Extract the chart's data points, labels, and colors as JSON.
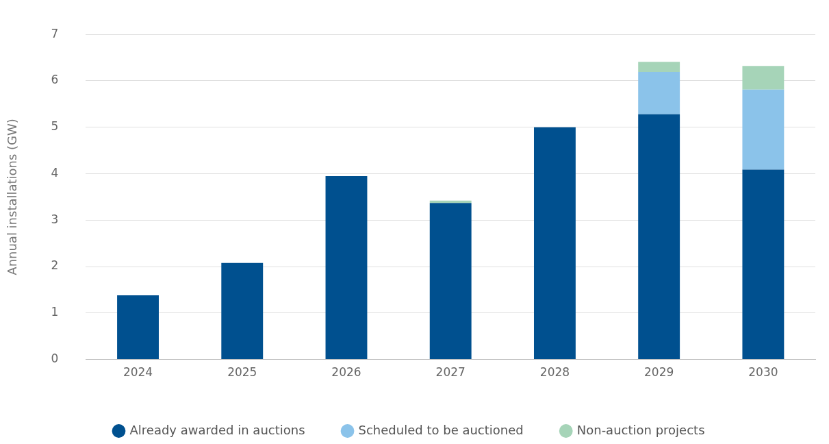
{
  "chart_data": {
    "type": "bar",
    "stacked": true,
    "ylabel": "Annual installations (GW)",
    "categories": [
      "2024",
      "2025",
      "2026",
      "2027",
      "2028",
      "2029",
      "2030"
    ],
    "series": [
      {
        "name": "Already awarded in auctions",
        "color": "#00508f",
        "values": [
          1.38,
          2.08,
          3.95,
          3.37,
          5.0,
          5.28,
          4.09
        ]
      },
      {
        "name": "Scheduled to be auctioned",
        "color": "#8bc3ea",
        "values": [
          null,
          null,
          null,
          null,
          null,
          0.91,
          1.72
        ]
      },
      {
        "name": "Non-auction projects",
        "color": "#a6d4b8",
        "values": [
          null,
          null,
          null,
          0.05,
          null,
          0.22,
          0.51
        ]
      }
    ],
    "ylim": [
      0,
      7
    ],
    "yticks": [
      0,
      1,
      2,
      3,
      4,
      5,
      6,
      7
    ],
    "grid": "y",
    "legend": "bottom",
    "marker": "circle"
  }
}
